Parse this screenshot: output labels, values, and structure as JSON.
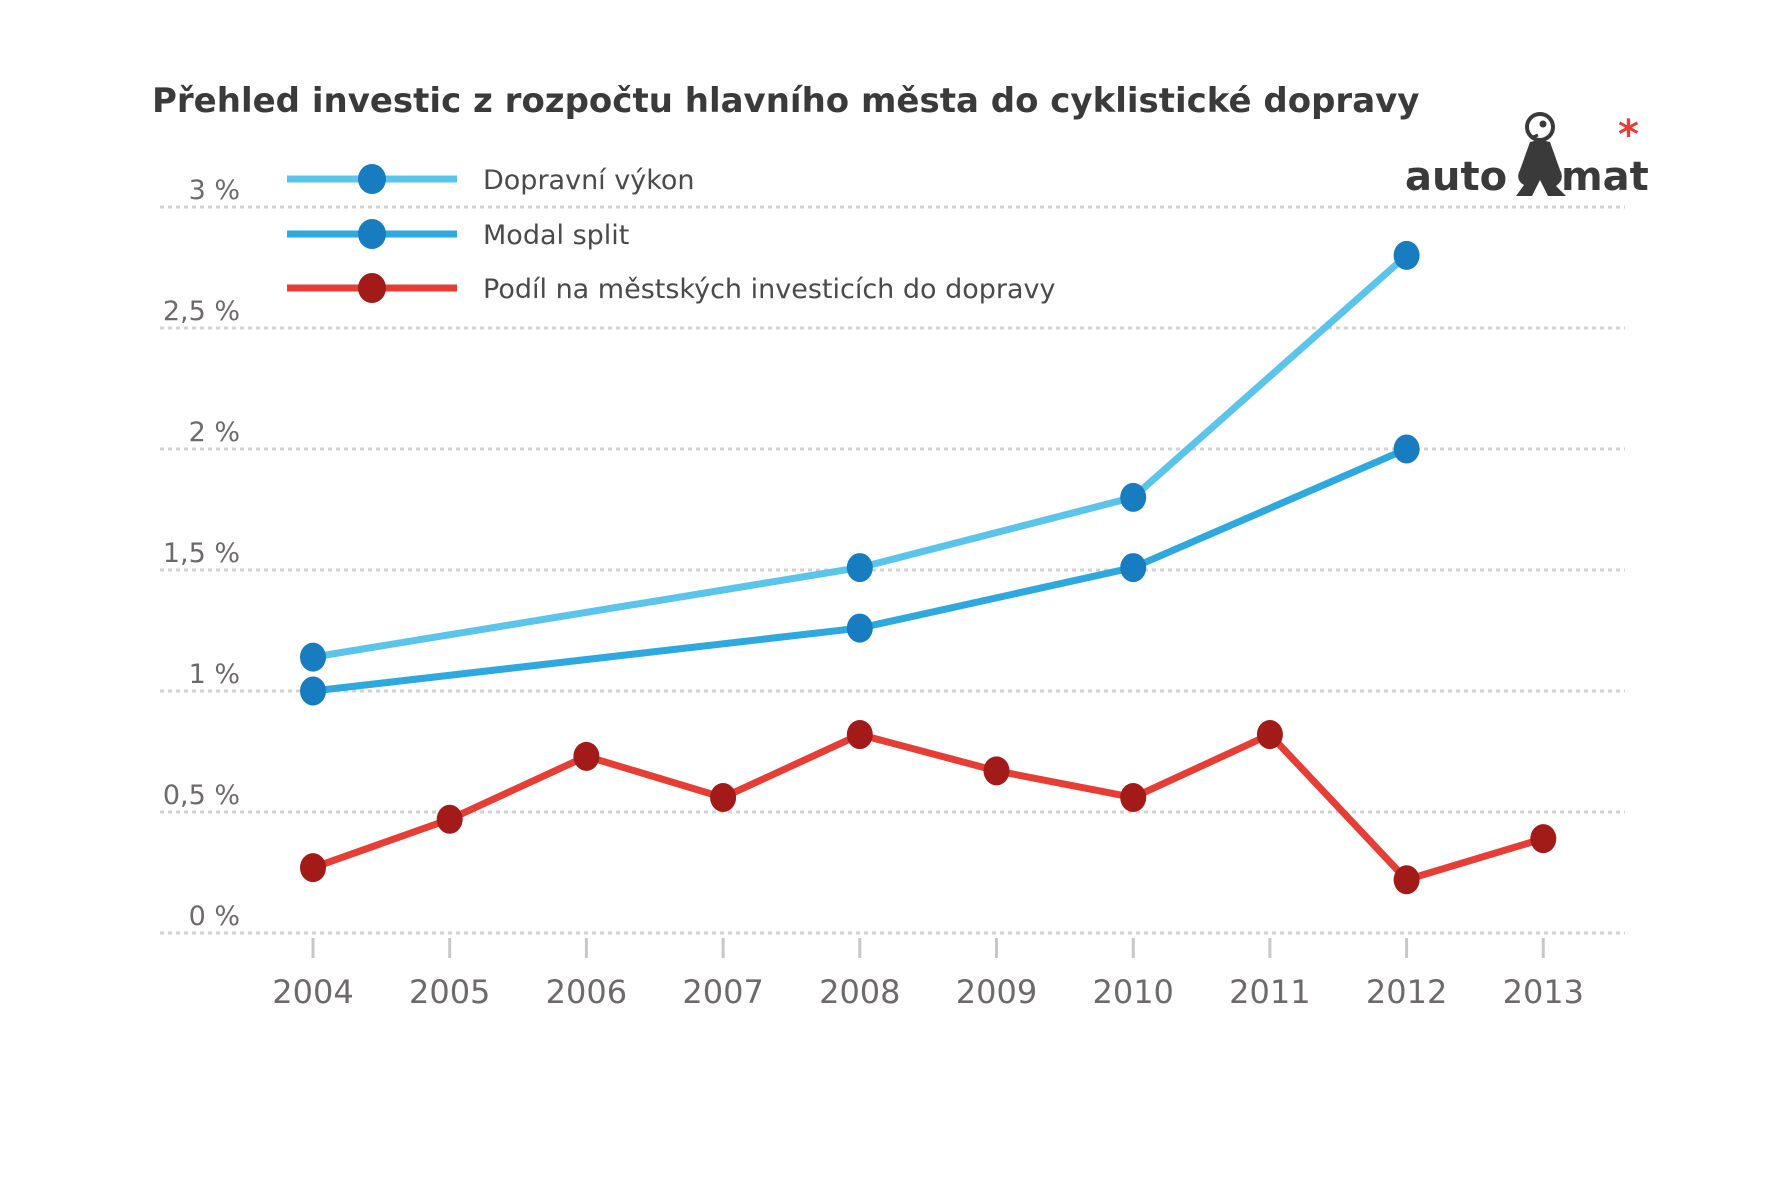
{
  "chart_data": {
    "type": "line",
    "title": "Přehled investic z rozpočtu hlavního města do cyklistické dopravy",
    "xlabel": "",
    "ylabel": "",
    "x": [
      "2004",
      "2005",
      "2006",
      "2007",
      "2008",
      "2009",
      "2010",
      "2011",
      "2012",
      "2013"
    ],
    "ylim": [
      0,
      3
    ],
    "yticks": [
      0,
      0.5,
      1,
      1.5,
      2,
      2.5,
      3
    ],
    "ytick_labels": [
      "0 %",
      "0,5 %",
      "1 %",
      "1,5 %",
      "2 %",
      "2,5 %",
      "3 %"
    ],
    "grid": "horizontal dotted",
    "legend_position": "top-left",
    "series": [
      {
        "name": "Dopravní výkon",
        "line_color": "#5bc4ea",
        "marker_color": "#177cc0",
        "values": [
          1.14,
          null,
          null,
          null,
          1.51,
          null,
          1.8,
          null,
          2.8,
          null
        ]
      },
      {
        "name": "Modal split",
        "line_color": "#2ea9e0",
        "marker_color": "#177cc0",
        "values": [
          1.0,
          null,
          null,
          null,
          1.26,
          null,
          1.51,
          null,
          2.0,
          null
        ]
      },
      {
        "name": "Podíl na městských investicích do dopravy",
        "line_color": "#e63e35",
        "marker_color": "#a31b19",
        "values": [
          0.27,
          0.47,
          0.73,
          0.56,
          0.82,
          0.67,
          0.56,
          0.82,
          0.22,
          0.39
        ]
      }
    ]
  },
  "logo": {
    "left_text": "auto",
    "right_text": "mat",
    "asterisk": "*",
    "text_color": "#3a3a3a",
    "asterisk_color": "#e63e35"
  }
}
